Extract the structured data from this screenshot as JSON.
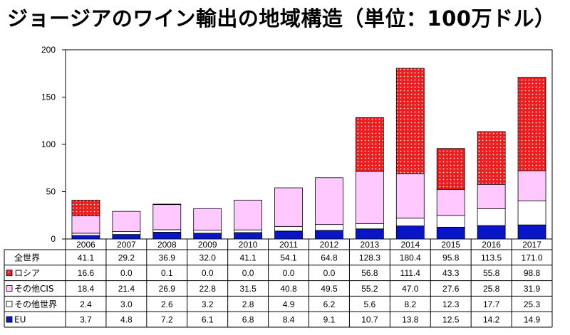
{
  "chart_data": {
    "type": "bar",
    "stacked": true,
    "title": "ジョージアのワイン輸出の地域構造（単位：100万ドル）",
    "categories": [
      "2006",
      "2007",
      "2008",
      "2009",
      "2010",
      "2011",
      "2012",
      "2013",
      "2014",
      "2015",
      "2016",
      "2017"
    ],
    "ylim": [
      0,
      200
    ],
    "yticks": [
      0,
      50,
      100,
      150,
      200
    ],
    "total": {
      "name": "全世界",
      "values": [
        "41.1",
        "29.2",
        "36.9",
        "32.0",
        "41.1",
        "54.1",
        "64.8",
        "128.3",
        "180.4",
        "95.8",
        "113.5",
        "171.0"
      ]
    },
    "series": [
      {
        "name": "ロシア",
        "color": "#ee1c1c",
        "pattern": "dots",
        "values": [
          16.6,
          0.0,
          0.1,
          0.0,
          0.0,
          0.0,
          0.0,
          56.8,
          111.4,
          43.3,
          55.8,
          98.8
        ],
        "labels": [
          "16.6",
          "0.0",
          "0.1",
          "0.0",
          "0.0",
          "0.0",
          "0.0",
          "56.8",
          "111.4",
          "43.3",
          "55.8",
          "98.8"
        ]
      },
      {
        "name": "その他CIS",
        "color": "#ffc8ff",
        "pattern": "solid",
        "values": [
          18.4,
          21.4,
          26.9,
          22.8,
          31.5,
          40.8,
          49.5,
          55.2,
          47.0,
          27.6,
          25.8,
          31.9
        ],
        "labels": [
          "18.4",
          "21.4",
          "26.9",
          "22.8",
          "31.5",
          "40.8",
          "49.5",
          "55.2",
          "47.0",
          "27.6",
          "25.8",
          "31.9"
        ]
      },
      {
        "name": "その他世界",
        "color": "#ffffff",
        "pattern": "solid",
        "values": [
          2.4,
          3.0,
          2.6,
          3.2,
          2.8,
          4.9,
          6.2,
          5.6,
          8.2,
          12.3,
          17.7,
          25.3
        ],
        "labels": [
          "2.4",
          "3.0",
          "2.6",
          "3.2",
          "2.8",
          "4.9",
          "6.2",
          "5.6",
          "8.2",
          "12.3",
          "17.7",
          "25.3"
        ]
      },
      {
        "name": "EU",
        "color": "#0a14c8",
        "pattern": "solid",
        "values": [
          3.7,
          4.8,
          7.2,
          6.1,
          6.8,
          8.4,
          9.1,
          10.7,
          13.8,
          12.5,
          14.2,
          14.9
        ],
        "labels": [
          "3.7",
          "4.8",
          "7.2",
          "6.1",
          "6.8",
          "8.4",
          "9.1",
          "10.7",
          "13.8",
          "12.5",
          "14.2",
          "14.9"
        ]
      }
    ]
  }
}
